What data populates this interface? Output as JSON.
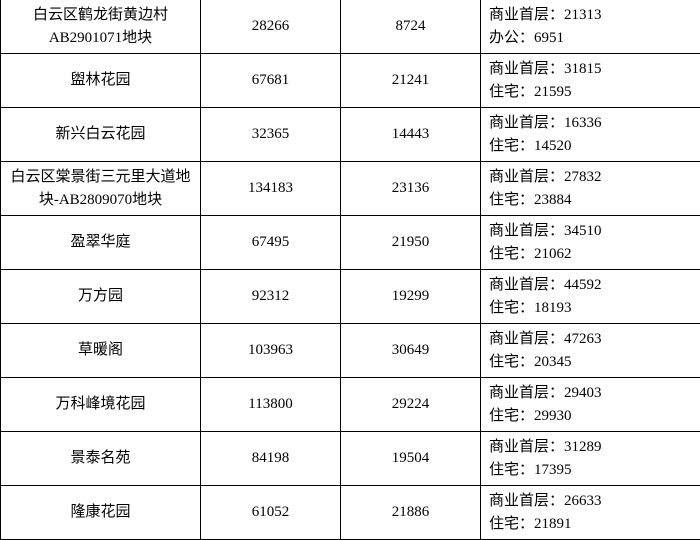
{
  "background_color": "#ffffff",
  "border_color": "#000000",
  "font_family": "SimSun",
  "font_size": 15,
  "rows": [
    {
      "name": "白云区鹤龙街黄边村AB2901071地块",
      "val2": "28266",
      "val3": "8724",
      "line1": "商业首层：21313",
      "line2": "办公：6951"
    },
    {
      "name": "盥林花园",
      "val2": "67681",
      "val3": "21241",
      "line1": "商业首层：31815",
      "line2": "住宅：21595"
    },
    {
      "name": "新兴白云花园",
      "val2": "32365",
      "val3": "14443",
      "line1": "商业首层：16336",
      "line2": "住宅：14520"
    },
    {
      "name": "白云区棠景街三元里大道地块-AB2809070地块",
      "val2": "134183",
      "val3": "23136",
      "line1": "商业首层：27832",
      "line2": "住宅：23884"
    },
    {
      "name": "盈翠华庭",
      "val2": "67495",
      "val3": "21950",
      "line1": "商业首层：34510",
      "line2": "住宅：21062"
    },
    {
      "name": "万方园",
      "val2": "92312",
      "val3": "19299",
      "line1": "商业首层：44592",
      "line2": "住宅：18193"
    },
    {
      "name": "草暖阁",
      "val2": "103963",
      "val3": "30649",
      "line1": "商业首层：47263",
      "line2": "住宅：20345"
    },
    {
      "name": "万科峰境花园",
      "val2": "113800",
      "val3": "29224",
      "line1": "商业首层：29403",
      "line2": "住宅：29930"
    },
    {
      "name": "景泰名苑",
      "val2": "84198",
      "val3": "19504",
      "line1": "商业首层：31289",
      "line2": "住宅：17395"
    },
    {
      "name": "隆康花园",
      "val2": "61052",
      "val3": "21886",
      "line1": "商业首层：26633",
      "line2": "住宅：21891"
    }
  ]
}
